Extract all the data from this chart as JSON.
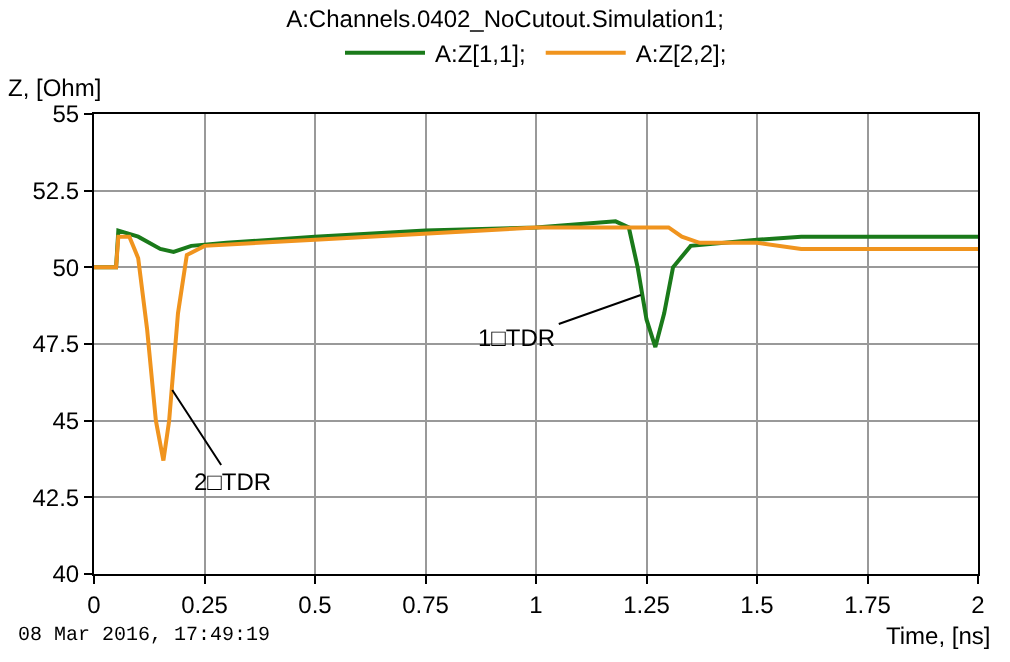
{
  "chart_data": {
    "type": "line",
    "title": "A:Channels.0402_NoCutout.Simulation1;",
    "xlabel": "Time, [ns]",
    "ylabel": "Z, [Ohm]",
    "series": [
      {
        "name": "A:Z[1,1];",
        "color": "#1a7a1a",
        "x": [
          0,
          0.05,
          0.055,
          0.1,
          0.15,
          0.18,
          0.22,
          0.3,
          0.5,
          0.75,
          1.0,
          1.18,
          1.21,
          1.23,
          1.25,
          1.27,
          1.29,
          1.31,
          1.35,
          1.5,
          1.6,
          2.0
        ],
        "values": [
          50,
          50,
          51.2,
          51.0,
          50.6,
          50.5,
          50.7,
          50.8,
          51.0,
          51.2,
          51.3,
          51.5,
          51.3,
          50.0,
          48.3,
          47.4,
          48.5,
          50.0,
          50.7,
          50.9,
          51.0,
          51.0
        ]
      },
      {
        "name": "A:Z[2,2];",
        "color": "#f0941e",
        "x": [
          0,
          0.05,
          0.055,
          0.08,
          0.1,
          0.12,
          0.14,
          0.157,
          0.17,
          0.19,
          0.21,
          0.25,
          0.5,
          1.0,
          1.2,
          1.3,
          1.33,
          1.37,
          1.5,
          1.6,
          2.0
        ],
        "values": [
          50,
          50,
          51.0,
          51.0,
          50.3,
          48.0,
          45.0,
          43.7,
          45.0,
          48.5,
          50.4,
          50.7,
          50.9,
          51.3,
          51.3,
          51.3,
          51.0,
          50.8,
          50.8,
          50.6,
          50.6
        ]
      }
    ],
    "xlim": [
      0,
      2
    ],
    "xticks": [
      0,
      0.25,
      0.5,
      0.75,
      1,
      1.25,
      1.5,
      1.75,
      2
    ],
    "ylim": [
      40,
      55
    ],
    "yticks": [
      40,
      42.5,
      45,
      47.5,
      50,
      52.5,
      55
    ],
    "grid": true,
    "legend": "top",
    "marker": "none",
    "line_style": "solid",
    "annotations": [
      {
        "text": "2□TDR",
        "x": 0.177,
        "y": 46.0
      },
      {
        "text": "1□TDR",
        "x": 1.237,
        "y": 49.1
      },
      "08 Mar 2016, 17:49:19"
    ]
  }
}
